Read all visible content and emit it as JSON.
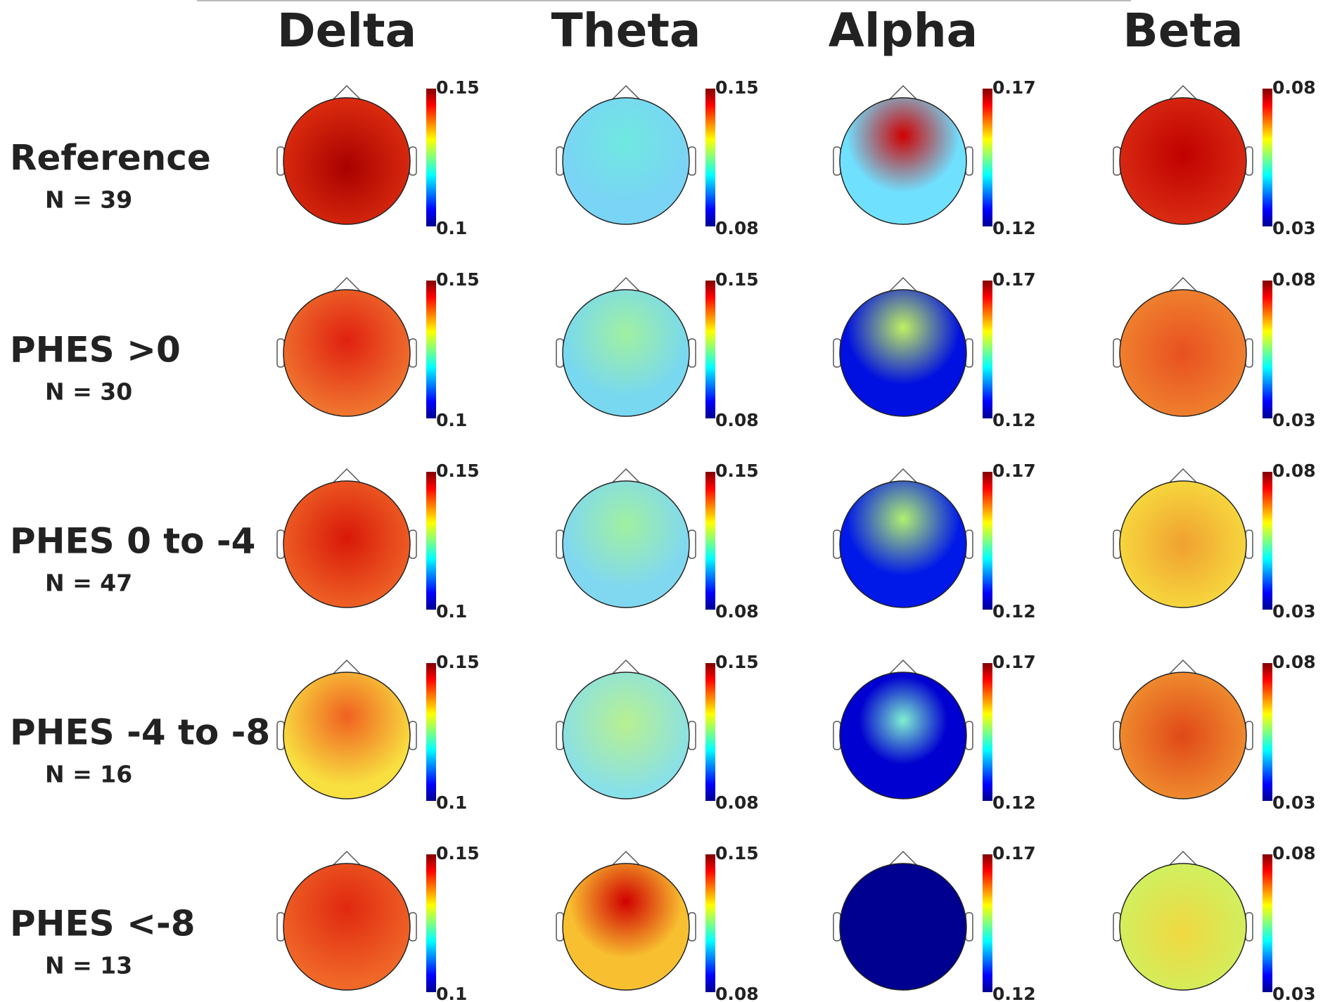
{
  "bands": [
    {
      "name": "Delta",
      "cbar_max": 0.15,
      "cbar_min": 0.1
    },
    {
      "name": "Theta",
      "cbar_max": 0.15,
      "cbar_min": 0.08
    },
    {
      "name": "Alpha",
      "cbar_max": 0.17,
      "cbar_min": 0.12
    },
    {
      "name": "Beta",
      "cbar_max": 0.08,
      "cbar_min": 0.03
    }
  ],
  "groups": [
    {
      "label": "Reference",
      "n": "N = 39"
    },
    {
      "label": "PHES >0",
      "n": "N = 30"
    },
    {
      "label": "PHES 0 to -4",
      "n": "N = 47"
    },
    {
      "label": "PHES -4 to -8",
      "n": "N = 16"
    },
    {
      "label": "PHES <-8",
      "n": "N = 13"
    }
  ]
}
